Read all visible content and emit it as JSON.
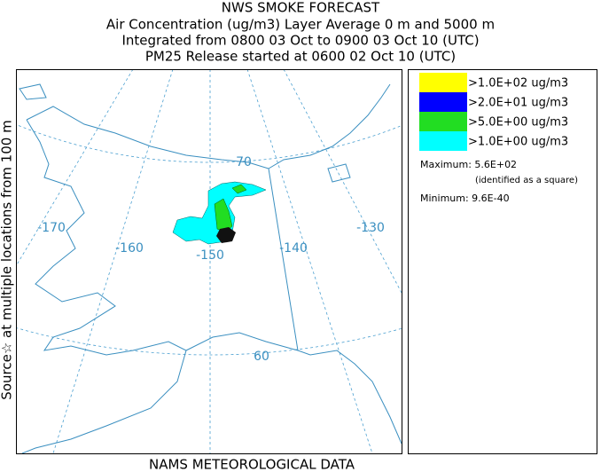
{
  "title": [
    "NWS SMOKE FORECAST",
    "Air Concentration (ug/m3) Layer Average    0 m and  5000 m",
    "Integrated from 0800 03 Oct to 0900 03 Oct 10 (UTC)",
    "PM25 Release started at 0600 02 Oct 10 (UTC)"
  ],
  "side_label": "Source☆  at multiple locations    from   100 m",
  "footer": "NAMS METEOROLOGICAL DATA",
  "graticule_labels": [
    "-170",
    "-160",
    "-150",
    "-140",
    "-130",
    "70",
    "60"
  ],
  "legend": [
    {
      "color": "#ffff00",
      "label": ">1.0E+02 ug/m3"
    },
    {
      "color": "#0000ff",
      "label": ">2.0E+01 ug/m3"
    },
    {
      "color": "#22dd22",
      "label": ">5.0E+00 ug/m3"
    },
    {
      "color": "#00ffff",
      "label": ">1.0E+00 ug/m3"
    }
  ],
  "maximum": "Maximum: 5.6E+02",
  "maximum_note": "(identified as a square)",
  "minimum": "Minimum: 9.6E-40"
}
